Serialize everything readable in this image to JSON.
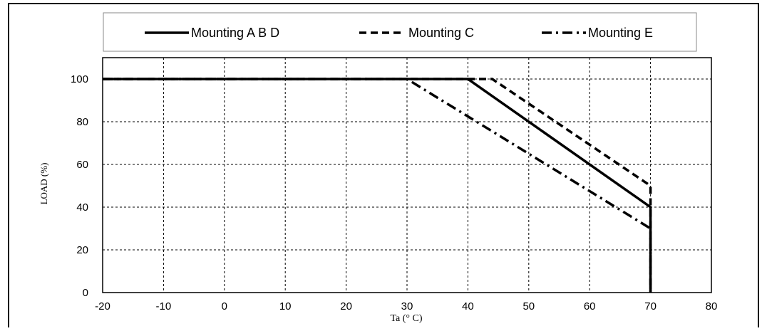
{
  "chart_data": {
    "type": "line",
    "xlabel": "Ta (° C)",
    "ylabel": "LOAD (%)",
    "xlim": [
      -20,
      80
    ],
    "ylim": [
      0,
      110
    ],
    "x_ticks": [
      -20,
      -10,
      0,
      10,
      20,
      30,
      40,
      50,
      60,
      70,
      80
    ],
    "y_ticks": [
      0,
      20,
      40,
      60,
      80,
      100
    ],
    "grid": true,
    "legend_position": "top",
    "series": [
      {
        "name": "Mounting A B D",
        "style": "solid",
        "color": "#000000",
        "points": [
          [
            -20,
            100
          ],
          [
            40,
            100
          ],
          [
            70,
            40
          ],
          [
            70,
            0
          ]
        ]
      },
      {
        "name": "Mounting C",
        "style": "dashed",
        "color": "#000000",
        "points": [
          [
            -20,
            100
          ],
          [
            44,
            100
          ],
          [
            70,
            50
          ],
          [
            70,
            0
          ]
        ]
      },
      {
        "name": "Mounting E",
        "style": "dashdot",
        "color": "#000000",
        "points": [
          [
            -20,
            100
          ],
          [
            30,
            100
          ],
          [
            70,
            30
          ],
          [
            70,
            0
          ]
        ]
      }
    ]
  }
}
